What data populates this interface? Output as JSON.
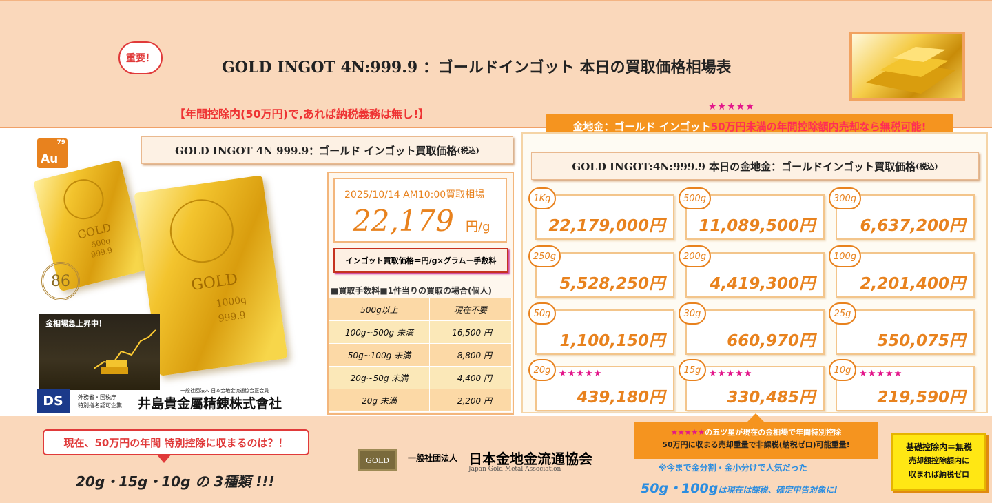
{
  "header": {
    "badge": "重要！",
    "title": "GOLD INGOT 4N:999.9 ：ゴールドインゴット 本日の買取価格相場表",
    "tax_note": "【年間控除内(50万円)で,あれば納税義務は無し!】"
  },
  "callout": {
    "stars": "★★★★★",
    "text_a": "金地金：ゴールド インゴット",
    "text_b": "50万円未満の年間控除額内売却なら無税可能!"
  },
  "left": {
    "au_number": "79",
    "au_symbol": "Au",
    "bar1_label": "GOLD",
    "bar1_weight": "500g",
    "bar1_purity": "999.9",
    "bar2_label": "GOLD",
    "bar2_weight": "1000g",
    "bar2_purity": "999.9",
    "anniv": "86",
    "chart_label": "金相場急上昇中！",
    "ds": "DS",
    "ds_line1": "外務省・国税庁",
    "ds_line2": "特別指名認可企業",
    "company_sub": "一般社団法人 日本金地金流通協会正会員",
    "company": "井島貴金屬精錬株式會社"
  },
  "price": {
    "header": "GOLD INGOT 4N 999.9：ゴールド インゴット買取価格",
    "header_suffix": "(税込)",
    "datetime": "2025/10/14 AM10:00買取相場",
    "per_gram": "22,179",
    "unit": "円/g",
    "formula": "インゴット買取価格＝円/g×グラム－手数料"
  },
  "fees": {
    "heading": "■買取手数料■1件当りの買取の場合(個人)",
    "rows": [
      {
        "range": "500g以上",
        "fee": "現在不要"
      },
      {
        "range": "100g~500g 未満",
        "fee": "16,500 円"
      },
      {
        "range": "50g~100g 未満",
        "fee": "8,800 円"
      },
      {
        "range": "20g~50g 未満",
        "fee": "4,400 円"
      },
      {
        "range": "20g 未満",
        "fee": "2,200 円"
      }
    ]
  },
  "table": {
    "header": "GOLD INGOT:4N:999.9 本日の金地金：ゴールドインゴット買取価格",
    "header_suffix": "(税込)",
    "star_mark": "★★★★★",
    "cards": [
      {
        "weight": "1Kg",
        "price": "22,179,000円"
      },
      {
        "weight": "500g",
        "price": "11,089,500円"
      },
      {
        "weight": "300g",
        "price": "6,637,200円"
      },
      {
        "weight": "250g",
        "price": "5,528,250円"
      },
      {
        "weight": "200g",
        "price": "4,419,300円"
      },
      {
        "weight": "100g",
        "price": "2,201,400円"
      },
      {
        "weight": "50g",
        "price": "1,100,150円"
      },
      {
        "weight": "30g",
        "price": "660,970円"
      },
      {
        "weight": "25g",
        "price": "550,075円"
      },
      {
        "weight": "20g",
        "price": "439,180円"
      },
      {
        "weight": "15g",
        "price": "330,485円"
      },
      {
        "weight": "10g",
        "price": "219,590円"
      }
    ]
  },
  "footer": {
    "question": "現在、50万円の年間 特別控除に収まるのは？！",
    "answer": "20g・15g・10g の 3種類 !!!",
    "assoc_logo": "GOLD",
    "assoc_prefix": "一般社団法人",
    "assoc_name": "日本金地金流通協会",
    "assoc_en": "Japan Gold Metal Association",
    "box_line1_stars": "★★★★★",
    "box_line1": "の五ツ星が現在の金相場で年間特別控除",
    "box_line2_a": "50万円",
    "box_line2_b": "に収まる売却重量で非課税(納税ゼロ)可能重量!",
    "note1": "※今まで金分割・金小分けで人気だった",
    "note2_a": "50g・100g",
    "note2_b": "は現在は課税、確定申告対象に!",
    "yellow_1": "基礎控除内＝無税",
    "yellow_2": "売却額控除額内に",
    "yellow_3": "収まれば納税ゼロ"
  },
  "colors": {
    "accent_orange": "#e8821e",
    "peach": "#fad8bb",
    "red": "#e03a3a",
    "star_pink": "#e3158a",
    "blue": "#2b8de0"
  }
}
